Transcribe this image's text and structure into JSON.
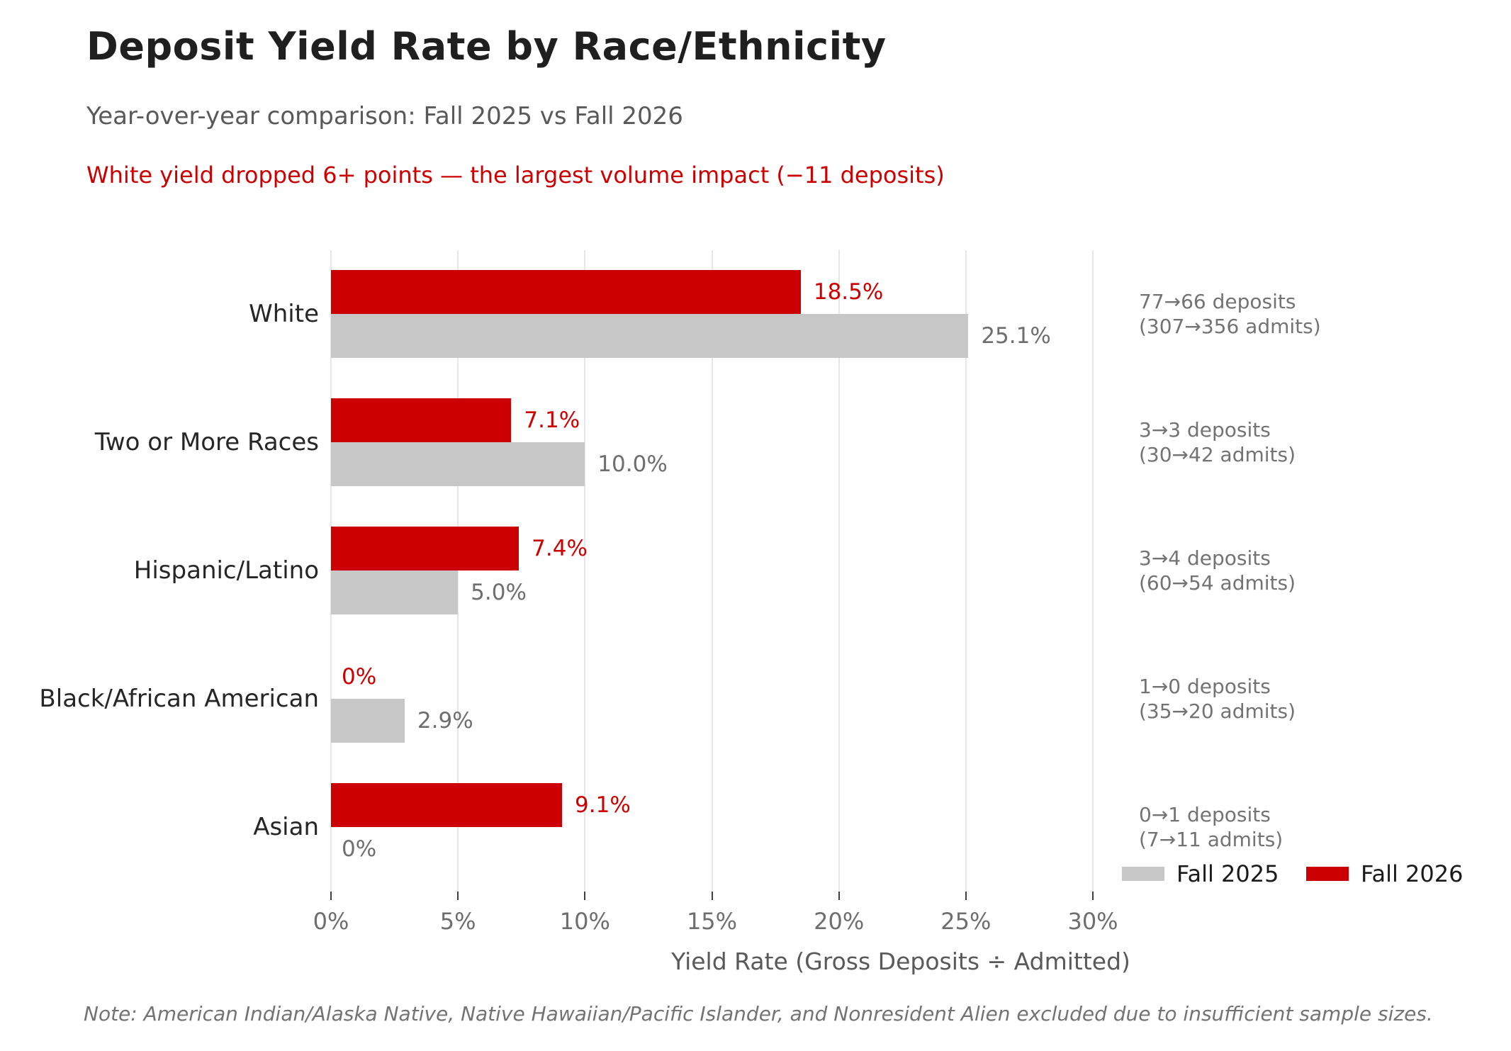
{
  "header": {
    "title": "Deposit Yield Rate by Race/Ethnicity",
    "subtitle": "Year-over-year comparison: Fall 2025 vs Fall 2026",
    "highlight": "White yield dropped 6+ points — the largest volume impact (−11 deposits)"
  },
  "chart_data": {
    "type": "bar",
    "orientation": "horizontal",
    "title": "Deposit Yield Rate by Race/Ethnicity",
    "xlabel": "Yield Rate (Gross Deposits ÷ Admitted)",
    "xlim": [
      0,
      30
    ],
    "grid": true,
    "x_tick_values": [
      0,
      5,
      10,
      15,
      20,
      25,
      30
    ],
    "x_tick_labels": [
      "0%",
      "5%",
      "10%",
      "15%",
      "20%",
      "25%",
      "30%"
    ],
    "categories": [
      "White",
      "Two or More Races",
      "Hispanic/Latino",
      "Black/African American",
      "Asian"
    ],
    "series": [
      {
        "name": "Fall 2026",
        "color": "#cc0000",
        "values": [
          18.5,
          7.1,
          7.4,
          0,
          9.1
        ],
        "labels": [
          "18.5%",
          "7.1%",
          "7.4%",
          "0%",
          "9.1%"
        ]
      },
      {
        "name": "Fall 2025",
        "color": "#c7c7c7",
        "values": [
          25.1,
          10.0,
          5.0,
          2.9,
          0
        ],
        "labels": [
          "25.1%",
          "10.0%",
          "5.0%",
          "2.9%",
          "0%"
        ]
      }
    ],
    "row_annotations": [
      {
        "line1": "77→66 deposits",
        "line2": "(307→356 admits)"
      },
      {
        "line1": "3→3 deposits",
        "line2": "(30→42 admits)"
      },
      {
        "line1": "3→4 deposits",
        "line2": "(60→54 admits)"
      },
      {
        "line1": "1→0 deposits",
        "line2": "(35→20 admits)"
      },
      {
        "line1": "0→1 deposits",
        "line2": "(7→11 admits)"
      }
    ],
    "legend": {
      "position": "lower right",
      "items": [
        {
          "label": "Fall 2025",
          "color": "#c7c7c7"
        },
        {
          "label": "Fall 2026",
          "color": "#cc0000"
        }
      ]
    }
  },
  "footer": {
    "note": "Note: American Indian/Alaska Native, Native Hawaiian/Pacific Islander, and Nonresident Alien excluded due to insufficient sample sizes."
  },
  "colors": {
    "fall2026_red": "#cc0000",
    "fall2025_gray": "#c7c7c7",
    "title_text": "#1f1f1f",
    "muted_text": "#595959",
    "annotation_text": "#737373",
    "gridline": "#e7e7e7",
    "background": "#ffffff"
  }
}
